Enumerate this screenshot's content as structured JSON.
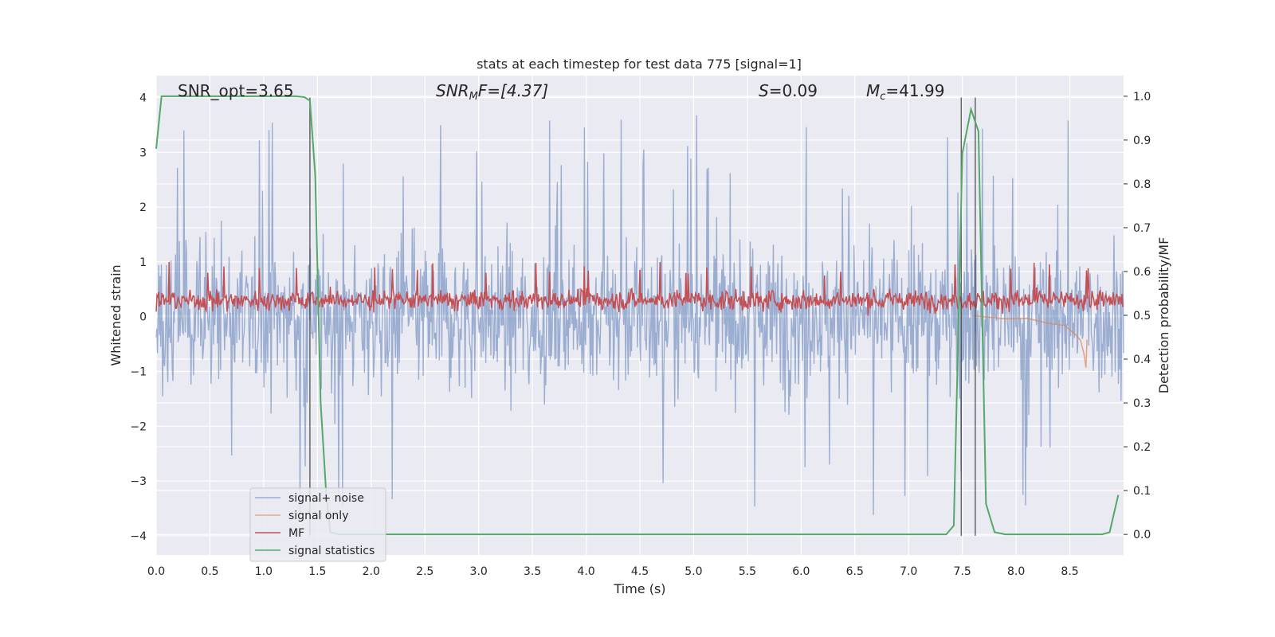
{
  "chart_data": {
    "type": "line",
    "title": "stats at each timestep for test data 775 [signal=1]",
    "xlabel": "Time (s)",
    "ylabel": "Whitened strain",
    "y2label": "Detection probability/MF",
    "xlim": [
      0.0,
      9.0
    ],
    "ylim": [
      -4.35,
      4.4
    ],
    "y2lim": [
      -0.047,
      1.047
    ],
    "xticks": [
      "0.0",
      "0.5",
      "1.0",
      "1.5",
      "2.0",
      "2.5",
      "3.0",
      "3.5",
      "4.0",
      "4.5",
      "5.0",
      "5.5",
      "6.0",
      "6.5",
      "7.0",
      "7.5",
      "8.0",
      "8.5"
    ],
    "yticks": [
      "4",
      "3",
      "2",
      "1",
      "0",
      "−1",
      "−2",
      "−3",
      "−4"
    ],
    "y2ticks": [
      "1.0",
      "0.9",
      "0.8",
      "0.7",
      "0.6",
      "0.5",
      "0.4",
      "0.3",
      "0.2",
      "0.1",
      "0.0"
    ],
    "grid": true,
    "legend_position": "lower-left",
    "annotations": {
      "snr_opt": "SNR_opt=3.65",
      "snr_mf_sym": "SNR",
      "snr_mf_sub": "M",
      "snr_mf_rest": "F=[4.37]",
      "s_sym": "S",
      "s_rest": "=0.09",
      "mc_sym": "M",
      "mc_sub": "c",
      "mc_rest": "=41.99"
    },
    "vertical_lines_x": [
      1.43,
      7.49,
      7.62
    ],
    "series": [
      {
        "name": "signal+ noise",
        "color": "#4c72b0",
        "axis": "left",
        "description_values": {
          "typical_band": [
            -1.6,
            1.6
          ],
          "max_peaks": [
            4.0,
            3.6,
            3.2
          ],
          "min_peaks": [
            -3.95,
            -3.6
          ]
        }
      },
      {
        "name": "signal only",
        "color": "#dd8452",
        "axis": "left",
        "x": [
          7.6,
          7.9,
          8.1,
          8.3,
          8.45,
          8.55,
          8.6,
          8.63,
          8.65,
          8.66
        ],
        "y": [
          0.0,
          -0.02,
          -0.05,
          -0.1,
          -0.18,
          -0.3,
          -0.45,
          -0.65,
          -0.95,
          -0.4
        ]
      },
      {
        "name": "MF",
        "color": "#c44e52",
        "axis": "left",
        "description_values": {
          "typical_band": [
            0.1,
            0.55
          ],
          "max_peaks": [
            1.0,
            0.9
          ]
        }
      },
      {
        "name": "signal statistics",
        "color": "#55a868",
        "axis": "right",
        "x": [
          0.0,
          0.05,
          0.1,
          0.5,
          1.0,
          1.3,
          1.38,
          1.43,
          1.48,
          1.53,
          1.58,
          1.62,
          1.7,
          2.0,
          3.0,
          4.0,
          5.0,
          6.0,
          7.0,
          7.35,
          7.42,
          7.5,
          7.58,
          7.65,
          7.72,
          7.8,
          7.9,
          8.5,
          8.8,
          8.87,
          8.95
        ],
        "y": [
          0.88,
          1.0,
          1.0,
          1.0,
          1.0,
          1.0,
          0.998,
          0.99,
          0.82,
          0.3,
          0.1,
          0.005,
          0.0,
          0.0,
          0.0,
          0.0,
          0.0,
          0.0,
          0.0,
          0.0,
          0.02,
          0.87,
          0.97,
          0.92,
          0.07,
          0.005,
          0.0,
          0.0,
          0.0,
          0.005,
          0.09
        ]
      }
    ]
  }
}
